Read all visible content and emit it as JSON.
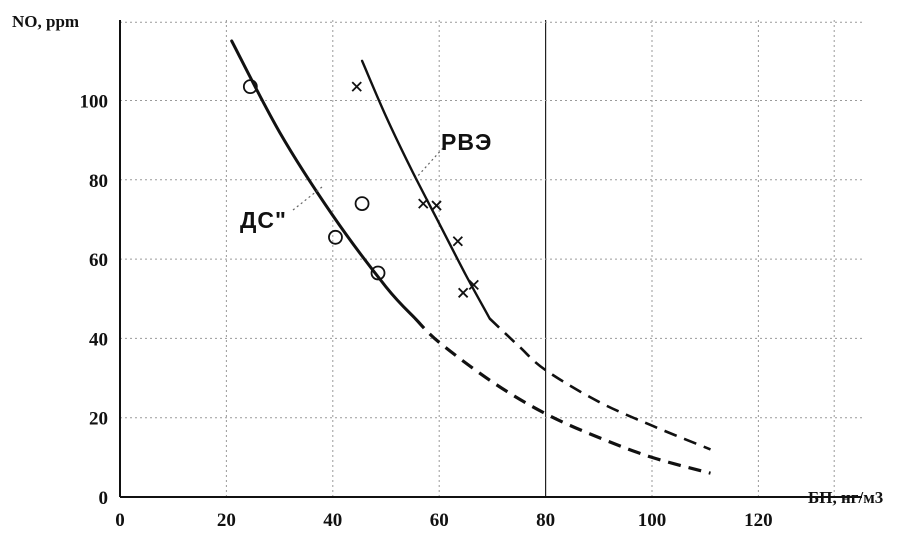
{
  "chart_data": {
    "type": "line",
    "title": "",
    "ylabel": "NO, ppm",
    "xlabel": "БП, нг/м3",
    "xlim": [
      0,
      135
    ],
    "ylim": [
      0,
      120
    ],
    "x_ticks": [
      "0",
      "20",
      "40",
      "60",
      "80",
      "100",
      "120"
    ],
    "y_ticks": [
      "0",
      "20",
      "40",
      "60",
      "80",
      "100"
    ],
    "grid": true,
    "series": [
      {
        "name": "ДС\"",
        "marker": "circle",
        "points": [
          {
            "x": 24.5,
            "y": 103.5
          },
          {
            "x": 40.5,
            "y": 65.5
          },
          {
            "x": 45.5,
            "y": 74
          },
          {
            "x": 48.5,
            "y": 56.5
          }
        ],
        "fit_solid": [
          {
            "x": 21,
            "y": 115
          },
          {
            "x": 30,
            "y": 92
          },
          {
            "x": 40,
            "y": 71
          },
          {
            "x": 50,
            "y": 53
          },
          {
            "x": 55.5,
            "y": 45
          }
        ],
        "fit_dashed": [
          {
            "x": 55.5,
            "y": 45
          },
          {
            "x": 60,
            "y": 39
          },
          {
            "x": 70,
            "y": 29
          },
          {
            "x": 80,
            "y": 21
          },
          {
            "x": 90,
            "y": 15
          },
          {
            "x": 100,
            "y": 10
          },
          {
            "x": 111,
            "y": 6
          }
        ]
      },
      {
        "name": "РВЭ",
        "marker": "cross",
        "points": [
          {
            "x": 44.5,
            "y": 103.5
          },
          {
            "x": 57,
            "y": 74
          },
          {
            "x": 59.5,
            "y": 73.5
          },
          {
            "x": 63.5,
            "y": 64.5
          },
          {
            "x": 64.5,
            "y": 51.5
          },
          {
            "x": 66.5,
            "y": 53.5
          }
        ],
        "fit_solid": [
          {
            "x": 45.5,
            "y": 110
          },
          {
            "x": 50,
            "y": 96
          },
          {
            "x": 55,
            "y": 82
          },
          {
            "x": 60,
            "y": 69
          },
          {
            "x": 65,
            "y": 56
          },
          {
            "x": 69.5,
            "y": 45
          }
        ],
        "fit_dashed": [
          {
            "x": 69.5,
            "y": 45
          },
          {
            "x": 75,
            "y": 38
          },
          {
            "x": 80,
            "y": 32
          },
          {
            "x": 90,
            "y": 24
          },
          {
            "x": 100,
            "y": 18
          },
          {
            "x": 111,
            "y": 12
          }
        ]
      }
    ]
  }
}
